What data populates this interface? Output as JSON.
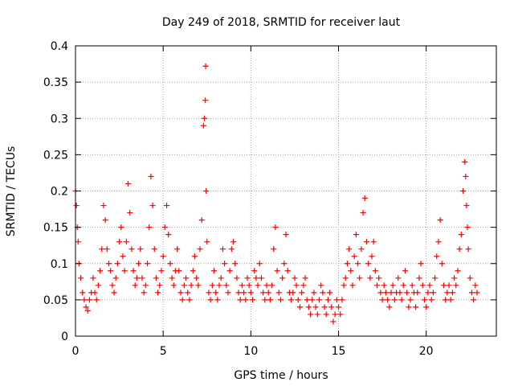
{
  "chart_data": {
    "type": "scatter",
    "title": "Day 249 of 2018, SRMTID for receiver laut",
    "xlabel": "GPS time / hours",
    "ylabel": "SRMTID / TECUs",
    "xlim": [
      0,
      24
    ],
    "ylim": [
      0,
      0.4
    ],
    "grid": true,
    "marker": "+",
    "x_ticks": [
      0,
      5,
      10,
      15,
      20
    ],
    "y_ticks": [
      0,
      0.05,
      0.1,
      0.15,
      0.2,
      0.25,
      0.3,
      0.35,
      0.4
    ],
    "x_tick_labels": [
      "0",
      "5",
      "10",
      "15",
      "20"
    ],
    "y_tick_labels": [
      "0",
      "0.05",
      "0.1",
      "0.15",
      "0.2",
      "0.25",
      "0.3",
      "0.35",
      "0.4"
    ],
    "colors": {
      "series": "#ff0000",
      "grid": "#a0a0a0",
      "axis": "#000000"
    },
    "series": [
      {
        "name": "SRMTID",
        "points": [
          [
            0.0,
            0.2
          ],
          [
            0.05,
            0.18
          ],
          [
            0.1,
            0.15
          ],
          [
            0.15,
            0.13
          ],
          [
            0.2,
            0.1
          ],
          [
            0.3,
            0.08
          ],
          [
            0.4,
            0.06
          ],
          [
            0.5,
            0.05
          ],
          [
            0.6,
            0.04
          ],
          [
            0.7,
            0.035
          ],
          [
            0.8,
            0.05
          ],
          [
            0.9,
            0.06
          ],
          [
            1.0,
            0.08
          ],
          [
            1.1,
            0.06
          ],
          [
            1.2,
            0.05
          ],
          [
            1.3,
            0.07
          ],
          [
            1.4,
            0.09
          ],
          [
            1.5,
            0.12
          ],
          [
            1.6,
            0.18
          ],
          [
            1.7,
            0.16
          ],
          [
            1.8,
            0.12
          ],
          [
            1.9,
            0.1
          ],
          [
            2.0,
            0.09
          ],
          [
            2.1,
            0.07
          ],
          [
            2.2,
            0.06
          ],
          [
            2.3,
            0.08
          ],
          [
            2.4,
            0.1
          ],
          [
            2.5,
            0.13
          ],
          [
            2.6,
            0.15
          ],
          [
            2.7,
            0.11
          ],
          [
            2.8,
            0.09
          ],
          [
            2.9,
            0.13
          ],
          [
            3.0,
            0.21
          ],
          [
            3.1,
            0.17
          ],
          [
            3.2,
            0.12
          ],
          [
            3.3,
            0.09
          ],
          [
            3.4,
            0.07
          ],
          [
            3.5,
            0.08
          ],
          [
            3.6,
            0.1
          ],
          [
            3.7,
            0.12
          ],
          [
            3.8,
            0.08
          ],
          [
            3.9,
            0.06
          ],
          [
            4.0,
            0.07
          ],
          [
            4.1,
            0.1
          ],
          [
            4.2,
            0.15
          ],
          [
            4.3,
            0.22
          ],
          [
            4.4,
            0.18
          ],
          [
            4.5,
            0.12
          ],
          [
            4.6,
            0.08
          ],
          [
            4.7,
            0.06
          ],
          [
            4.8,
            0.07
          ],
          [
            4.9,
            0.09
          ],
          [
            5.0,
            0.11
          ],
          [
            5.1,
            0.15
          ],
          [
            5.2,
            0.18
          ],
          [
            5.3,
            0.14
          ],
          [
            5.4,
            0.1
          ],
          [
            5.5,
            0.08
          ],
          [
            5.6,
            0.07
          ],
          [
            5.7,
            0.09
          ],
          [
            5.8,
            0.12
          ],
          [
            5.9,
            0.09
          ],
          [
            6.0,
            0.06
          ],
          [
            6.1,
            0.05
          ],
          [
            6.2,
            0.07
          ],
          [
            6.3,
            0.08
          ],
          [
            6.4,
            0.06
          ],
          [
            6.5,
            0.05
          ],
          [
            6.6,
            0.07
          ],
          [
            6.7,
            0.09
          ],
          [
            6.8,
            0.11
          ],
          [
            6.9,
            0.08
          ],
          [
            7.0,
            0.07
          ],
          [
            7.1,
            0.12
          ],
          [
            7.2,
            0.16
          ],
          [
            7.3,
            0.29
          ],
          [
            7.35,
            0.3
          ],
          [
            7.4,
            0.325
          ],
          [
            7.42,
            0.372
          ],
          [
            7.45,
            0.2
          ],
          [
            7.5,
            0.13
          ],
          [
            7.6,
            0.06
          ],
          [
            7.7,
            0.05
          ],
          [
            7.8,
            0.07
          ],
          [
            7.9,
            0.09
          ],
          [
            8.0,
            0.06
          ],
          [
            8.1,
            0.05
          ],
          [
            8.2,
            0.07
          ],
          [
            8.3,
            0.08
          ],
          [
            8.4,
            0.12
          ],
          [
            8.5,
            0.1
          ],
          [
            8.6,
            0.07
          ],
          [
            8.7,
            0.06
          ],
          [
            8.8,
            0.09
          ],
          [
            8.9,
            0.12
          ],
          [
            9.0,
            0.13
          ],
          [
            9.1,
            0.1
          ],
          [
            9.2,
            0.08
          ],
          [
            9.3,
            0.06
          ],
          [
            9.4,
            0.05
          ],
          [
            9.5,
            0.07
          ],
          [
            9.6,
            0.06
          ],
          [
            9.7,
            0.05
          ],
          [
            9.8,
            0.08
          ],
          [
            9.9,
            0.07
          ],
          [
            10.0,
            0.06
          ],
          [
            10.1,
            0.05
          ],
          [
            10.2,
            0.09
          ],
          [
            10.3,
            0.08
          ],
          [
            10.4,
            0.07
          ],
          [
            10.5,
            0.1
          ],
          [
            10.6,
            0.08
          ],
          [
            10.7,
            0.06
          ],
          [
            10.8,
            0.05
          ],
          [
            10.9,
            0.07
          ],
          [
            11.0,
            0.06
          ],
          [
            11.1,
            0.05
          ],
          [
            11.2,
            0.07
          ],
          [
            11.3,
            0.12
          ],
          [
            11.4,
            0.15
          ],
          [
            11.5,
            0.09
          ],
          [
            11.6,
            0.06
          ],
          [
            11.7,
            0.05
          ],
          [
            11.8,
            0.08
          ],
          [
            11.9,
            0.1
          ],
          [
            12.0,
            0.14
          ],
          [
            12.1,
            0.09
          ],
          [
            12.2,
            0.06
          ],
          [
            12.3,
            0.05
          ],
          [
            12.4,
            0.06
          ],
          [
            12.5,
            0.08
          ],
          [
            12.6,
            0.07
          ],
          [
            12.7,
            0.05
          ],
          [
            12.8,
            0.04
          ],
          [
            12.9,
            0.06
          ],
          [
            13.0,
            0.07
          ],
          [
            13.1,
            0.08
          ],
          [
            13.2,
            0.05
          ],
          [
            13.3,
            0.04
          ],
          [
            13.4,
            0.03
          ],
          [
            13.5,
            0.05
          ],
          [
            13.6,
            0.06
          ],
          [
            13.7,
            0.04
          ],
          [
            13.8,
            0.03
          ],
          [
            13.9,
            0.05
          ],
          [
            14.0,
            0.07
          ],
          [
            14.1,
            0.06
          ],
          [
            14.2,
            0.04
          ],
          [
            14.3,
            0.03
          ],
          [
            14.4,
            0.05
          ],
          [
            14.5,
            0.06
          ],
          [
            14.6,
            0.04
          ],
          [
            14.7,
            0.02
          ],
          [
            14.8,
            0.03
          ],
          [
            14.9,
            0.05
          ],
          [
            15.0,
            0.04
          ],
          [
            15.1,
            0.03
          ],
          [
            15.2,
            0.05
          ],
          [
            15.3,
            0.07
          ],
          [
            15.4,
            0.08
          ],
          [
            15.5,
            0.1
          ],
          [
            15.6,
            0.12
          ],
          [
            15.7,
            0.09
          ],
          [
            15.8,
            0.07
          ],
          [
            15.9,
            0.11
          ],
          [
            16.0,
            0.14
          ],
          [
            16.1,
            0.1
          ],
          [
            16.2,
            0.08
          ],
          [
            16.3,
            0.12
          ],
          [
            16.4,
            0.17
          ],
          [
            16.5,
            0.19
          ],
          [
            16.6,
            0.13
          ],
          [
            16.7,
            0.1
          ],
          [
            16.8,
            0.08
          ],
          [
            16.9,
            0.11
          ],
          [
            17.0,
            0.13
          ],
          [
            17.1,
            0.09
          ],
          [
            17.2,
            0.07
          ],
          [
            17.3,
            0.08
          ],
          [
            17.4,
            0.06
          ],
          [
            17.5,
            0.05
          ],
          [
            17.6,
            0.07
          ],
          [
            17.7,
            0.06
          ],
          [
            17.8,
            0.05
          ],
          [
            17.9,
            0.04
          ],
          [
            18.0,
            0.06
          ],
          [
            18.1,
            0.07
          ],
          [
            18.2,
            0.05
          ],
          [
            18.3,
            0.06
          ],
          [
            18.4,
            0.08
          ],
          [
            18.5,
            0.06
          ],
          [
            18.6,
            0.05
          ],
          [
            18.7,
            0.07
          ],
          [
            18.8,
            0.09
          ],
          [
            18.9,
            0.06
          ],
          [
            19.0,
            0.04
          ],
          [
            19.1,
            0.05
          ],
          [
            19.2,
            0.07
          ],
          [
            19.3,
            0.06
          ],
          [
            19.4,
            0.04
          ],
          [
            19.5,
            0.06
          ],
          [
            19.6,
            0.08
          ],
          [
            19.7,
            0.1
          ],
          [
            19.8,
            0.07
          ],
          [
            19.9,
            0.05
          ],
          [
            20.0,
            0.04
          ],
          [
            20.1,
            0.06
          ],
          [
            20.2,
            0.07
          ],
          [
            20.3,
            0.05
          ],
          [
            20.4,
            0.06
          ],
          [
            20.5,
            0.08
          ],
          [
            20.6,
            0.11
          ],
          [
            20.7,
            0.13
          ],
          [
            20.8,
            0.16
          ],
          [
            20.9,
            0.1
          ],
          [
            21.0,
            0.07
          ],
          [
            21.1,
            0.05
          ],
          [
            21.2,
            0.06
          ],
          [
            21.3,
            0.07
          ],
          [
            21.4,
            0.05
          ],
          [
            21.5,
            0.06
          ],
          [
            21.6,
            0.08
          ],
          [
            21.7,
            0.07
          ],
          [
            21.8,
            0.09
          ],
          [
            21.9,
            0.12
          ],
          [
            22.0,
            0.14
          ],
          [
            22.1,
            0.2
          ],
          [
            22.2,
            0.24
          ],
          [
            22.25,
            0.22
          ],
          [
            22.3,
            0.18
          ],
          [
            22.35,
            0.15
          ],
          [
            22.4,
            0.12
          ],
          [
            22.5,
            0.08
          ],
          [
            22.6,
            0.06
          ],
          [
            22.7,
            0.05
          ],
          [
            22.8,
            0.07
          ],
          [
            22.9,
            0.06
          ]
        ]
      }
    ]
  }
}
